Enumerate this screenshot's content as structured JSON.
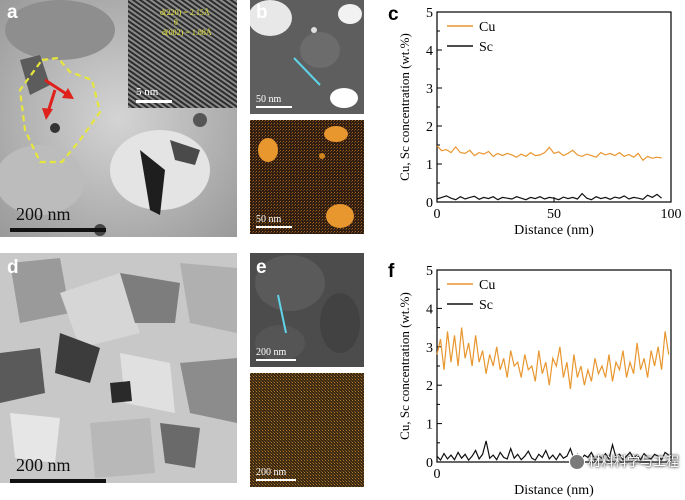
{
  "panels": {
    "a": {
      "label": "a",
      "scale_bar": "200 nm",
      "inset_scale_bar": "5 nm",
      "inset_annotations": [
        "d(220) = 2.15Å",
        "θ",
        "d(002) = 1.88Å"
      ]
    },
    "b": {
      "label": "b",
      "scale_bar_top": "50 nm",
      "scale_bar_bottom": "50 nm"
    },
    "c": {
      "label": "c"
    },
    "d": {
      "label": "d",
      "scale_bar": "200 nm"
    },
    "e": {
      "label": "e",
      "scale_bar_top": "200 nm",
      "scale_bar_bottom": "200 nm"
    },
    "f": {
      "label": "f"
    }
  },
  "colors": {
    "cu": "#E8962E",
    "sc": "#111111",
    "line_scan": "#5FD3E8",
    "highlight": "#E6E63C",
    "arrow": "#E0201B"
  },
  "watermark": "材料科学与工程",
  "chart_data": [
    {
      "type": "line",
      "panel": "c",
      "xlabel": "Distance (nm)",
      "ylabel": "Cu, Sc concentration (wt.%)",
      "xlim": [
        0,
        100
      ],
      "ylim": [
        0,
        5
      ],
      "xticks": [
        0,
        50,
        100
      ],
      "yticks": [
        0,
        0.5,
        1,
        1.5,
        2,
        2.5,
        3,
        3.5,
        4,
        4.5,
        5
      ],
      "legend": "top-left",
      "series": [
        {
          "name": "Cu",
          "color": "#E8962E",
          "x": [
            0,
            2,
            4,
            6,
            8,
            10,
            12,
            14,
            16,
            18,
            20,
            22,
            24,
            26,
            28,
            30,
            32,
            34,
            36,
            38,
            40,
            42,
            44,
            46,
            48,
            50,
            52,
            54,
            56,
            58,
            60,
            62,
            64,
            66,
            68,
            70,
            72,
            74,
            76,
            78,
            80,
            82,
            84,
            86,
            88,
            90,
            92,
            94,
            96
          ],
          "values": [
            1.48,
            1.35,
            1.38,
            1.3,
            1.45,
            1.3,
            1.28,
            1.36,
            1.22,
            1.3,
            1.26,
            1.33,
            1.2,
            1.28,
            1.22,
            1.28,
            1.24,
            1.18,
            1.26,
            1.2,
            1.3,
            1.22,
            1.24,
            1.3,
            1.44,
            1.28,
            1.32,
            1.22,
            1.28,
            1.36,
            1.24,
            1.2,
            1.26,
            1.22,
            1.18,
            1.3,
            1.24,
            1.28,
            1.22,
            1.3,
            1.2,
            1.25,
            1.18,
            1.28,
            1.1,
            1.2,
            1.15,
            1.18,
            1.16
          ]
        },
        {
          "name": "Sc",
          "color": "#111111",
          "x": [
            0,
            2,
            4,
            6,
            8,
            10,
            12,
            14,
            16,
            18,
            20,
            22,
            24,
            26,
            28,
            30,
            32,
            34,
            36,
            38,
            40,
            42,
            44,
            46,
            48,
            50,
            52,
            54,
            56,
            58,
            60,
            62,
            64,
            66,
            68,
            70,
            72,
            74,
            76,
            78,
            80,
            82,
            84,
            86,
            88,
            90,
            92,
            94,
            96
          ],
          "values": [
            0.08,
            0.12,
            0.16,
            0.1,
            0.06,
            0.14,
            0.08,
            0.12,
            0.15,
            0.07,
            0.12,
            0.09,
            0.14,
            0.06,
            0.12,
            0.1,
            0.08,
            0.14,
            0.1,
            0.06,
            0.12,
            0.09,
            0.14,
            0.08,
            0.12,
            0.1,
            0.06,
            0.13,
            0.09,
            0.12,
            0.08,
            0.22,
            0.1,
            0.06,
            0.14,
            0.09,
            0.12,
            0.07,
            0.13,
            0.1,
            0.16,
            0.08,
            0.12,
            0.1,
            0.07,
            0.18,
            0.12,
            0.2,
            0.1
          ]
        }
      ]
    },
    {
      "type": "line",
      "panel": "f",
      "xlabel": "Distance (nm)",
      "ylabel": "Cu, Sc concentration (wt.%)",
      "xlim": [
        0,
        100
      ],
      "ylim": [
        0,
        5
      ],
      "xticks": [
        0
      ],
      "yticks": [
        0,
        0.5,
        1,
        1.5,
        2,
        2.5,
        3,
        3.5,
        4,
        4.5,
        5
      ],
      "legend": "top-left",
      "series": [
        {
          "name": "Cu",
          "color": "#E8962E",
          "x": [
            0,
            1.5,
            3,
            4.5,
            6,
            7.5,
            9,
            10.5,
            12,
            13.5,
            15,
            16.5,
            18,
            19.5,
            21,
            22.5,
            24,
            25.5,
            27,
            28.5,
            30,
            31.5,
            33,
            34.5,
            36,
            37.5,
            39,
            40.5,
            42,
            43.5,
            45,
            46.5,
            48,
            49.5,
            51,
            52.5,
            54,
            55.5,
            57,
            58.5,
            60,
            61.5,
            63,
            64.5,
            66,
            67.5,
            69,
            70.5,
            72,
            73.5,
            75,
            76.5,
            78,
            79.5,
            81,
            82.5,
            84,
            85.5,
            87,
            88.5,
            90,
            91.5,
            93,
            94.5,
            96,
            97.5,
            99
          ],
          "values": [
            2.8,
            3.2,
            2.4,
            3.4,
            2.6,
            3.3,
            2.5,
            3.5,
            2.7,
            3.1,
            2.5,
            3.3,
            2.6,
            2.9,
            2.3,
            2.8,
            2.5,
            3.0,
            2.4,
            2.7,
            2.2,
            2.9,
            2.5,
            2.6,
            2.2,
            2.8,
            2.4,
            2.5,
            2.1,
            2.9,
            2.3,
            2.6,
            2.0,
            2.7,
            2.5,
            3.0,
            2.2,
            2.6,
            1.9,
            2.8,
            2.2,
            2.5,
            2.0,
            2.4,
            2.1,
            2.7,
            2.3,
            2.5,
            2.2,
            2.8,
            2.1,
            2.6,
            2.4,
            2.9,
            2.2,
            2.6,
            2.3,
            3.1,
            2.4,
            2.7,
            2.2,
            2.9,
            2.5,
            3.0,
            2.4,
            3.4,
            2.8
          ]
        },
        {
          "name": "Sc",
          "color": "#111111",
          "x": [
            0,
            1.5,
            3,
            4.5,
            6,
            7.5,
            9,
            10.5,
            12,
            13.5,
            15,
            16.5,
            18,
            19.5,
            21,
            22.5,
            24,
            25.5,
            27,
            28.5,
            30,
            31.5,
            33,
            34.5,
            36,
            37.5,
            39,
            40.5,
            42,
            43.5,
            45,
            46.5,
            48,
            49.5,
            51,
            52.5,
            54,
            55.5,
            57,
            58.5,
            60,
            61.5,
            63,
            64.5,
            66,
            67.5,
            69,
            70.5,
            72,
            73.5,
            75,
            76.5,
            78,
            79.5,
            81,
            82.5,
            84,
            85.5,
            87,
            88.5,
            90,
            91.5,
            93,
            94.5,
            96,
            97.5,
            99
          ],
          "values": [
            0.15,
            0.05,
            0.22,
            0.08,
            0.18,
            0.06,
            0.25,
            0.1,
            0.2,
            0.05,
            0.15,
            0.3,
            0.08,
            0.2,
            0.55,
            0.1,
            0.18,
            0.06,
            0.25,
            0.12,
            0.08,
            0.35,
            0.1,
            0.2,
            0.06,
            0.15,
            0.28,
            0.1,
            0.05,
            0.2,
            0.12,
            0.3,
            0.08,
            0.18,
            0.06,
            0.22,
            0.1,
            0.15,
            0.35,
            0.08,
            0.2,
            0.05,
            0.18,
            0.12,
            0.25,
            0.06,
            0.15,
            0.1,
            0.22,
            0.08,
            0.45,
            0.12,
            0.2,
            0.06,
            0.15,
            0.25,
            0.1,
            0.18,
            0.06,
            0.22,
            0.12,
            0.08,
            0.2,
            0.15,
            0.06,
            0.25,
            0.18
          ]
        }
      ]
    }
  ]
}
